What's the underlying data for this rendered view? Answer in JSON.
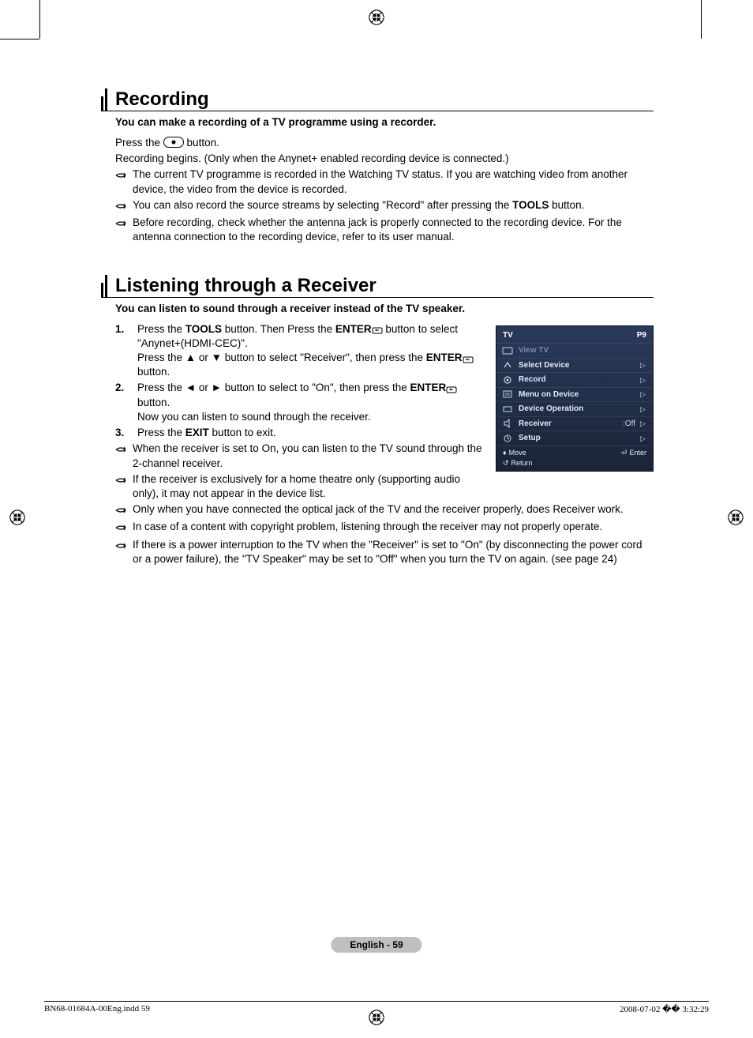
{
  "sections": {
    "recording": {
      "title": "Recording",
      "subtitle": "You can make a recording of a TV programme using a recorder.",
      "press_prefix": "Press the ",
      "press_suffix": " button.",
      "begins": "Recording begins. (Only when the Anynet+ enabled recording device is connected.)",
      "notes": [
        "The current TV programme is recorded in the Watching TV status. If you are watching video from another device, the video from the device is recorded.",
        "You can also record the source streams by selecting \"Record\" after pressing the TOOLS button.",
        "Before recording, check whether the antenna jack is properly connected to the recording device. For the antenna connection to the recording device, refer to its user manual."
      ],
      "tools_bold": "TOOLS"
    },
    "receiver": {
      "title": "Listening through a Receiver",
      "subtitle": "You can listen to sound through a receiver instead of the TV speaker.",
      "steps": [
        {
          "num": "1.",
          "t1a": "Press the ",
          "t1b": "TOOLS",
          "t1c": " button. Then Press the ",
          "t1d": "ENTER",
          "t1e": " button to select \"Anynet+(HDMI-CEC)\".",
          "t2a": "Press the ▲ or ▼ button to select \"Receiver\", then press the ",
          "t2b": "ENTER",
          "t2c": " button."
        },
        {
          "num": "2.",
          "t1a": "Press the ◄ or ► button to select to \"On\", then press the ",
          "t1b": "ENTER",
          "t1c": " button.",
          "t2": "Now you can listen to sound through the receiver."
        },
        {
          "num": "3.",
          "t1a": "Press the ",
          "t1b": "EXIT",
          "t1c": " button to exit."
        }
      ],
      "notes": [
        "When the receiver is set to On, you can listen to the TV sound through the 2-channel receiver.",
        "If the receiver is exclusively for a home theatre only (supporting audio only), it may not appear in the device list.",
        "Only when you have connected the optical jack of the TV and the receiver properly, does Receiver work.",
        "In case of a content with copyright problem, listening through the receiver may not properly operate.",
        "If there is a power interruption to the TV when the \"Receiver\" is set to \"On\" (by disconnecting the power cord or a power failure), the \"TV Speaker\" may be set to \"Off\" when you turn the TV on again. (see page 24)"
      ]
    }
  },
  "osd": {
    "tv": "TV",
    "channel": "P9",
    "items": [
      {
        "label": "View TV",
        "dim": true,
        "chev": false
      },
      {
        "label": "Select Device",
        "dim": false,
        "chev": true
      },
      {
        "label": "Record",
        "dim": false,
        "chev": true
      },
      {
        "label": "Menu on Device",
        "dim": false,
        "chev": true
      },
      {
        "label": "Device Operation",
        "dim": false,
        "chev": true
      },
      {
        "label": "Receiver",
        "val": ":Off",
        "dim": false,
        "chev": true
      },
      {
        "label": "Setup",
        "dim": false,
        "chev": true
      }
    ],
    "foot_move": "Move",
    "foot_enter": "Enter",
    "foot_return": "Return"
  },
  "footer": {
    "page_label": "English - 59",
    "doc": "BN68-01684A-00Eng.indd   59",
    "timestamp": "2008-07-02   �� 3:32:29"
  },
  "colors": {
    "osd_top": "#2a3a5a",
    "osd_bottom": "#1a2438",
    "pill": "#bfbfbf"
  }
}
